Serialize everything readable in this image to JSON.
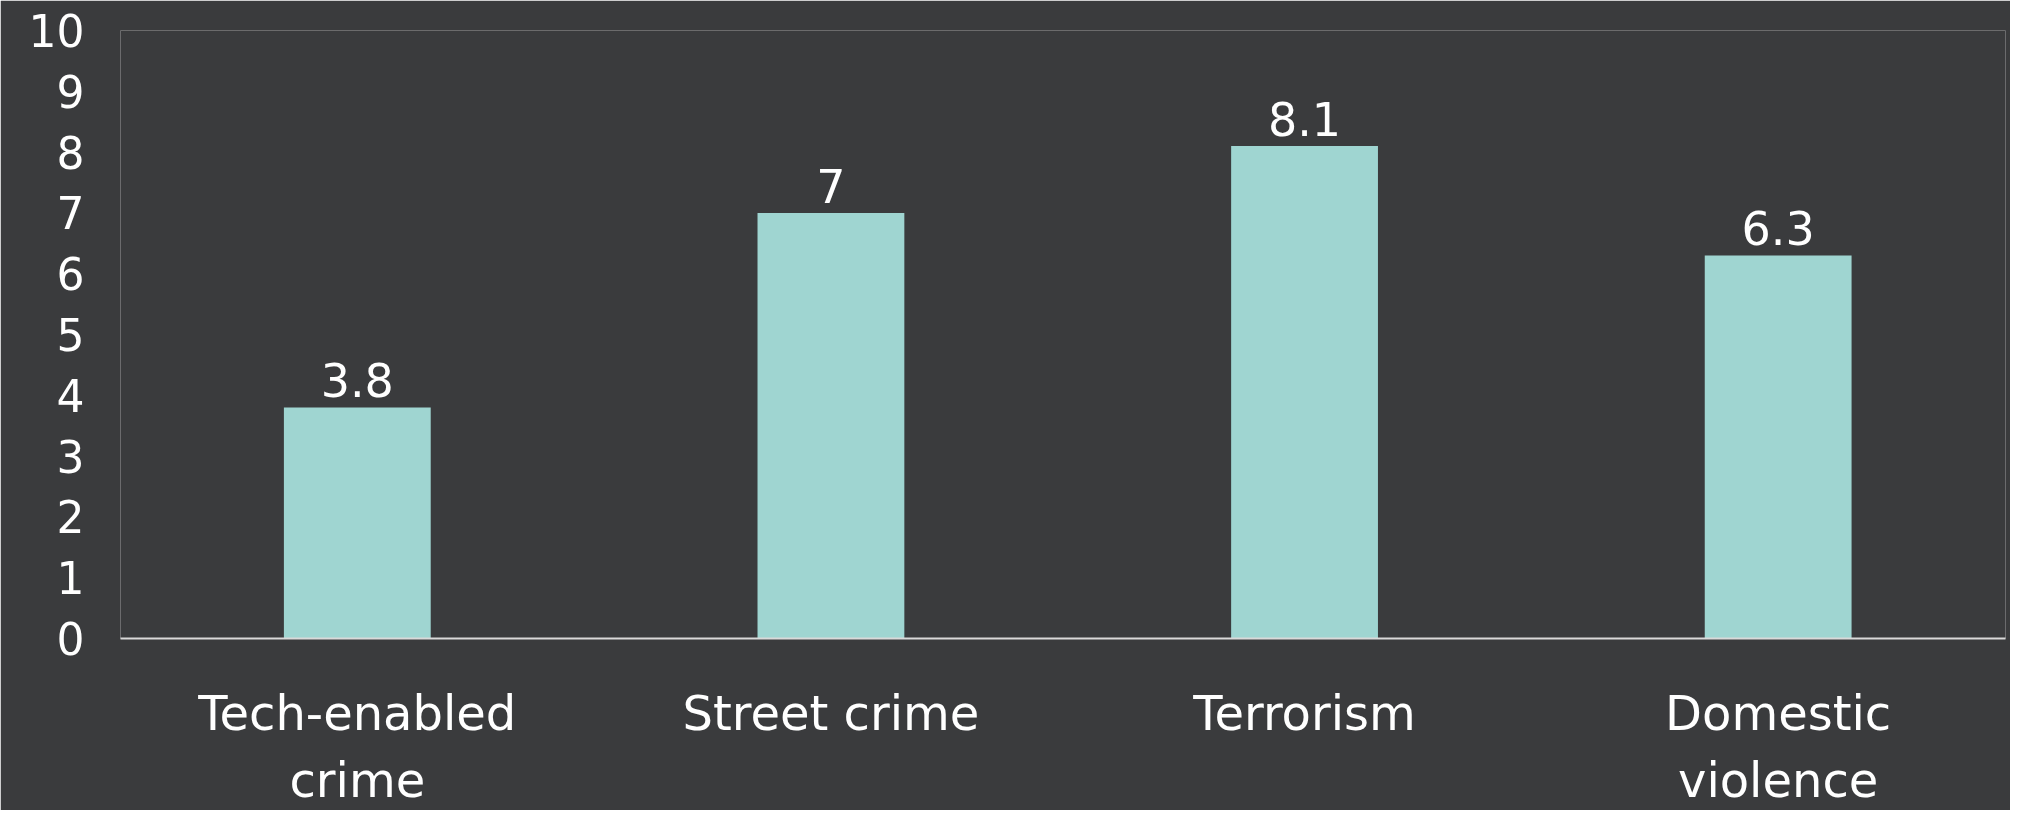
{
  "chart_data": {
    "type": "bar",
    "categories": [
      "Tech-enabled crime",
      "Street crime",
      "Terrorism",
      "Domestic violence"
    ],
    "values": [
      3.8,
      7,
      8.1,
      6.3
    ],
    "color": "#9fd5d1",
    "ylim": [
      0,
      10
    ],
    "yticks": [
      0,
      1,
      2,
      3,
      4,
      5,
      6,
      7,
      8,
      9,
      10
    ],
    "grid": false,
    "data_labels": true
  }
}
